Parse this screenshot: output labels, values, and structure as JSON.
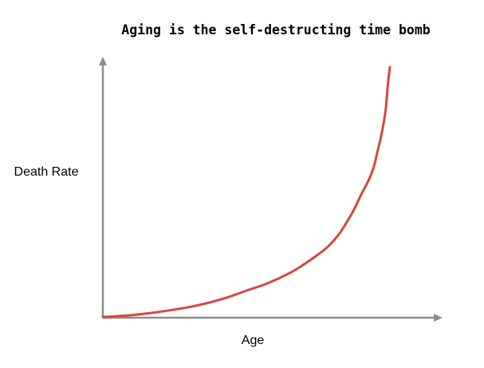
{
  "chart_data": {
    "type": "line",
    "title": "Aging is the self-destructing time bomb",
    "xlabel": "Age",
    "ylabel": "Death Rate",
    "xlim": [
      0,
      100
    ],
    "ylim": [
      0,
      100
    ],
    "grid": false,
    "legend": "none",
    "x_ticks": [],
    "y_ticks": [],
    "colors": {
      "series": "#d9463b",
      "axis": "#8c8c8c",
      "text": "#000000"
    },
    "series": [
      {
        "color": "#d9463b",
        "x": [
          0,
          4,
          10,
          18,
          26,
          34,
          40,
          46,
          52,
          56,
          60,
          63,
          66,
          68,
          70,
          72,
          74,
          75.5,
          76.5,
          77.5,
          78.3,
          78.9,
          79.2,
          79.5,
          80
        ],
        "y": [
          0,
          0.3,
          1,
          2.5,
          4.5,
          7.5,
          10.5,
          13.5,
          17.5,
          21,
          25,
          28.5,
          33.5,
          38,
          43,
          49,
          54.5,
          60,
          66,
          72,
          78,
          84,
          89,
          94,
          100
        ]
      }
    ]
  }
}
